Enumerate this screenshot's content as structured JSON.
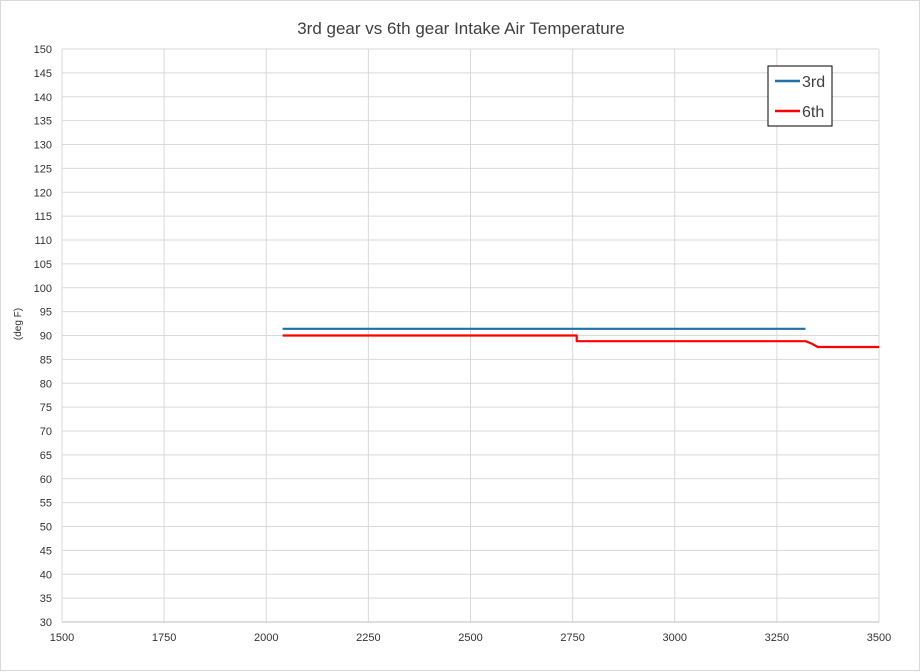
{
  "chart_data": {
    "type": "line",
    "title": "3rd gear vs 6th gear  Intake Air Temperature",
    "xlabel": "",
    "ylabel": "(deg F)",
    "xlim": [
      1500,
      3500
    ],
    "ylim": [
      30,
      150
    ],
    "xticks": [
      1500,
      1750,
      2000,
      2250,
      2500,
      2750,
      3000,
      3250,
      3500
    ],
    "yticks": [
      30,
      35,
      40,
      45,
      50,
      55,
      60,
      65,
      70,
      75,
      80,
      85,
      90,
      95,
      100,
      105,
      110,
      115,
      120,
      125,
      130,
      135,
      140,
      145,
      150
    ],
    "grid": true,
    "legend_position": "top-right",
    "series": [
      {
        "name": "3rd",
        "color": "#1f6fa8",
        "points": [
          [
            2040,
            91.4
          ],
          [
            3320,
            91.4
          ]
        ]
      },
      {
        "name": "6th",
        "color": "#ff0000",
        "points": [
          [
            2040,
            90
          ],
          [
            2760,
            90
          ],
          [
            2760,
            88.8
          ],
          [
            3320,
            88.8
          ],
          [
            3335,
            88.3
          ],
          [
            3350,
            87.6
          ],
          [
            3500,
            87.6
          ]
        ]
      }
    ]
  }
}
